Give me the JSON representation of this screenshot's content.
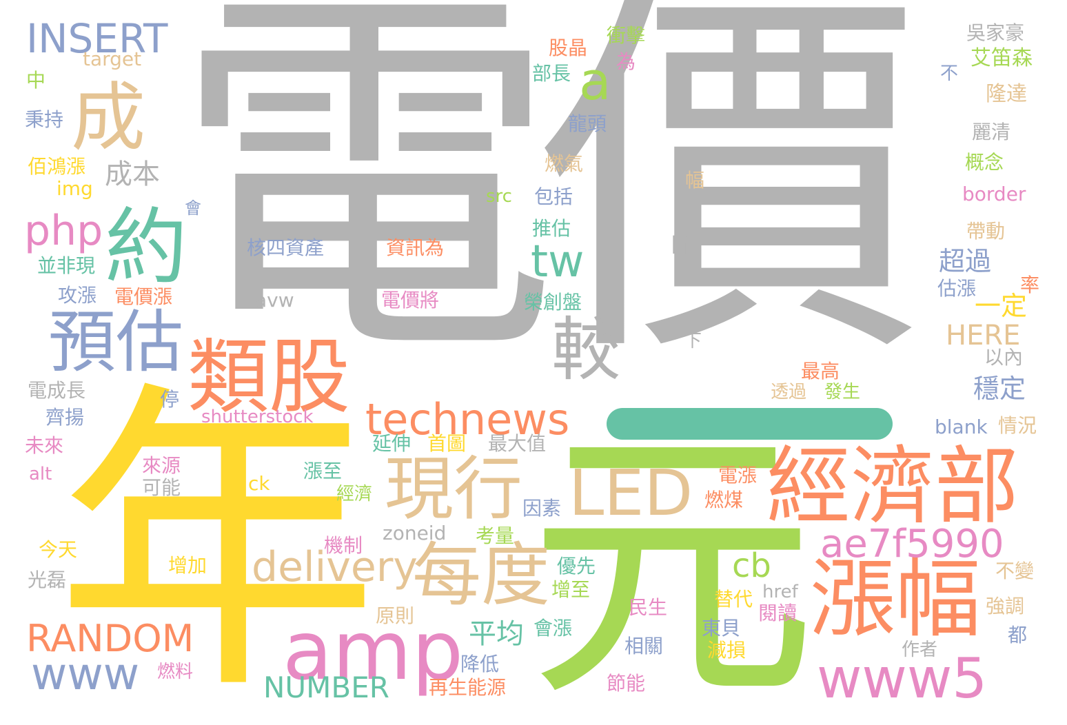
{
  "words": [
    {
      "text": "電價",
      "color": "#b3b3b3"
    },
    {
      "text": "年",
      "color": "#ffd92f"
    },
    {
      "text": "元",
      "color": "#a6d854"
    },
    {
      "text": "經濟部",
      "color": "#fc8d62"
    },
    {
      "text": "漲幅",
      "color": "#fc8d62"
    },
    {
      "text": "amp",
      "color": "#e78ac3"
    },
    {
      "text": "類股",
      "color": "#fc8d62"
    },
    {
      "text": "預估",
      "color": "#8da0cb"
    },
    {
      "text": "約",
      "color": "#66c2a5"
    },
    {
      "text": "成",
      "color": "#e5c494"
    },
    {
      "text": "現行",
      "color": "#e5c494"
    },
    {
      "text": "每度",
      "color": "#e5c494"
    },
    {
      "text": "LED",
      "color": "#e5c494"
    },
    {
      "text": "www5",
      "color": "#e78ac3"
    },
    {
      "text": "technews",
      "color": "#fc8d62"
    },
    {
      "text": "較",
      "color": "#b3b3b3"
    },
    {
      "text": "ae7f5990",
      "color": "#e78ac3"
    },
    {
      "text": "delivery",
      "color": "#e5c494"
    },
    {
      "text": "INSERT",
      "color": "#8da0cb"
    },
    {
      "text": "www",
      "color": "#8da0cb"
    },
    {
      "text": "RANDOM",
      "color": "#fc8d62"
    },
    {
      "text": "php",
      "color": "#e78ac3"
    },
    {
      "text": "tw",
      "color": "#66c2a5"
    },
    {
      "text": "a",
      "color": "#a6d854"
    },
    {
      "text": "cb",
      "color": "#a6d854"
    },
    {
      "text": "NUMBER",
      "color": "#66c2a5"
    },
    {
      "text": "n",
      "color": "#b3b3b3"
    },
    {
      "text": "成本",
      "color": "#b3b3b3"
    },
    {
      "text": "平均",
      "color": "#66c2a5"
    },
    {
      "text": "超過",
      "color": "#8da0cb"
    },
    {
      "text": "一定",
      "color": "#ffd92f"
    },
    {
      "text": "HERE",
      "color": "#e5c494"
    },
    {
      "text": "穩定",
      "color": "#8da0cb"
    },
    {
      "text": "核四資產",
      "color": "#8da0cb"
    },
    {
      "text": "資訊為",
      "color": "#fc8d62"
    },
    {
      "text": "avw",
      "color": "#b3b3b3"
    },
    {
      "text": "電價將",
      "color": "#e78ac3"
    },
    {
      "text": "target",
      "color": "#e5c494"
    },
    {
      "text": "中",
      "color": "#a6d854"
    },
    {
      "text": "秉持",
      "color": "#8da0cb"
    },
    {
      "text": "佰鴻漲",
      "color": "#ffd92f"
    },
    {
      "text": "img",
      "color": "#ffd92f"
    },
    {
      "text": "並非現",
      "color": "#66c2a5"
    },
    {
      "text": "攻漲",
      "color": "#8da0cb"
    },
    {
      "text": "電價漲",
      "color": "#fc8d62"
    },
    {
      "text": "電成長",
      "color": "#b3b3b3"
    },
    {
      "text": "齊揚",
      "color": "#8da0cb"
    },
    {
      "text": "停",
      "color": "#8da0cb"
    },
    {
      "text": "shutterstock",
      "color": "#e78ac3"
    },
    {
      "text": "未來",
      "color": "#e78ac3"
    },
    {
      "text": "alt",
      "color": "#e78ac3"
    },
    {
      "text": "來源",
      "color": "#e78ac3"
    },
    {
      "text": "可能",
      "color": "#b3b3b3"
    },
    {
      "text": "ck",
      "color": "#ffd92f"
    },
    {
      "text": "今天",
      "color": "#ffd92f"
    },
    {
      "text": "光磊",
      "color": "#b3b3b3"
    },
    {
      "text": "增加",
      "color": "#ffd92f"
    },
    {
      "text": "燃料",
      "color": "#e78ac3"
    },
    {
      "text": "會",
      "color": "#8da0cb"
    },
    {
      "text": "股晶",
      "color": "#fc8d62"
    },
    {
      "text": "衝擊",
      "color": "#a6d854"
    },
    {
      "text": "為",
      "color": "#e78ac3"
    },
    {
      "text": "部長",
      "color": "#66c2a5"
    },
    {
      "text": "龍頭",
      "color": "#8da0cb"
    },
    {
      "text": "燃氣",
      "color": "#e5c494"
    },
    {
      "text": "src",
      "color": "#a6d854"
    },
    {
      "text": "包括",
      "color": "#8da0cb"
    },
    {
      "text": "推估",
      "color": "#66c2a5"
    },
    {
      "text": "幅",
      "color": "#e5c494"
    },
    {
      "text": "榮創盤",
      "color": "#66c2a5"
    },
    {
      "text": "延伸",
      "color": "#66c2a5"
    },
    {
      "text": "首圖",
      "color": "#ffd92f"
    },
    {
      "text": "最大值",
      "color": "#b3b3b3"
    },
    {
      "text": "漲至",
      "color": "#66c2a5"
    },
    {
      "text": "經濟",
      "color": "#a6d854"
    },
    {
      "text": "因素",
      "color": "#8da0cb"
    },
    {
      "text": "zoneid",
      "color": "#b3b3b3"
    },
    {
      "text": "機制",
      "color": "#e78ac3"
    },
    {
      "text": "考量",
      "color": "#a6d854"
    },
    {
      "text": "優先",
      "color": "#66c2a5"
    },
    {
      "text": "增至",
      "color": "#a6d854"
    },
    {
      "text": "會漲",
      "color": "#66c2a5"
    },
    {
      "text": "原則",
      "color": "#e5c494"
    },
    {
      "text": "降低",
      "color": "#8da0cb"
    },
    {
      "text": "再生能源",
      "color": "#fc8d62"
    },
    {
      "text": "節能",
      "color": "#e78ac3"
    },
    {
      "text": "相關",
      "color": "#8da0cb"
    },
    {
      "text": "民生",
      "color": "#e78ac3"
    },
    {
      "text": "電漲",
      "color": "#fc8d62"
    },
    {
      "text": "燃煤",
      "color": "#fc8d62"
    },
    {
      "text": "替代",
      "color": "#ffd92f"
    },
    {
      "text": "href",
      "color": "#b3b3b3"
    },
    {
      "text": "閱讀",
      "color": "#e78ac3"
    },
    {
      "text": "東貝",
      "color": "#8da0cb"
    },
    {
      "text": "減損",
      "color": "#ffd92f"
    },
    {
      "text": "下",
      "color": "#b3b3b3"
    },
    {
      "text": "最高",
      "color": "#fc8d62"
    },
    {
      "text": "透過",
      "color": "#e5c494"
    },
    {
      "text": "發生",
      "color": "#a6d854"
    },
    {
      "text": "吳家豪",
      "color": "#b3b3b3"
    },
    {
      "text": "艾笛森",
      "color": "#a6d854"
    },
    {
      "text": "不",
      "color": "#8da0cb"
    },
    {
      "text": "隆達",
      "color": "#e5c494"
    },
    {
      "text": "麗清",
      "color": "#b3b3b3"
    },
    {
      "text": "概念",
      "color": "#a6d854"
    },
    {
      "text": "border",
      "color": "#e78ac3"
    },
    {
      "text": "帶動",
      "color": "#e5c494"
    },
    {
      "text": "估漲",
      "color": "#8da0cb"
    },
    {
      "text": "率",
      "color": "#fc8d62"
    },
    {
      "text": "以內",
      "color": "#b3b3b3"
    },
    {
      "text": "blank",
      "color": "#8da0cb"
    },
    {
      "text": "情況",
      "color": "#e5c494"
    },
    {
      "text": "不變",
      "color": "#e5c494"
    },
    {
      "text": "強調",
      "color": "#e5c494"
    },
    {
      "text": "都",
      "color": "#8da0cb"
    },
    {
      "text": "作者",
      "color": "#b3b3b3"
    }
  ]
}
